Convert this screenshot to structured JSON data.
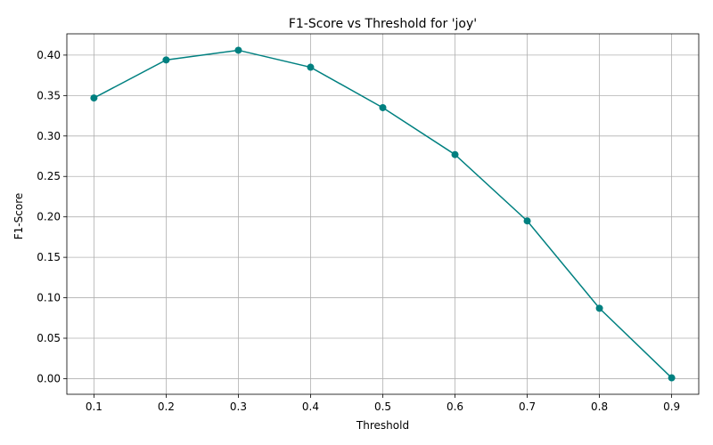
{
  "chart_data": {
    "type": "line",
    "title": "F1-Score vs Threshold for 'joy'",
    "xlabel": "Threshold",
    "ylabel": "F1-Score",
    "x": [
      0.1,
      0.2,
      0.3,
      0.4,
      0.5,
      0.6,
      0.7,
      0.8,
      0.9
    ],
    "series": [
      {
        "values": [
          0.347,
          0.394,
          0.406,
          0.385,
          0.335,
          0.277,
          0.195,
          0.087,
          0.001
        ],
        "color": "#008080",
        "marker": "circle"
      }
    ],
    "xlim": [
      0.0625,
      0.9375
    ],
    "ylim": [
      -0.0193,
      0.4263
    ],
    "xticks": [
      0.1,
      0.2,
      0.3,
      0.4,
      0.5,
      0.6,
      0.7,
      0.8,
      0.9
    ],
    "xtick_labels": [
      "0.1",
      "0.2",
      "0.3",
      "0.4",
      "0.5",
      "0.6",
      "0.7",
      "0.8",
      "0.9"
    ],
    "yticks": [
      0.0,
      0.05,
      0.1,
      0.15,
      0.2,
      0.25,
      0.3,
      0.35,
      0.4
    ],
    "ytick_labels": [
      "0.00",
      "0.05",
      "0.10",
      "0.15",
      "0.20",
      "0.25",
      "0.30",
      "0.35",
      "0.40"
    ],
    "grid": true,
    "legend": false
  }
}
